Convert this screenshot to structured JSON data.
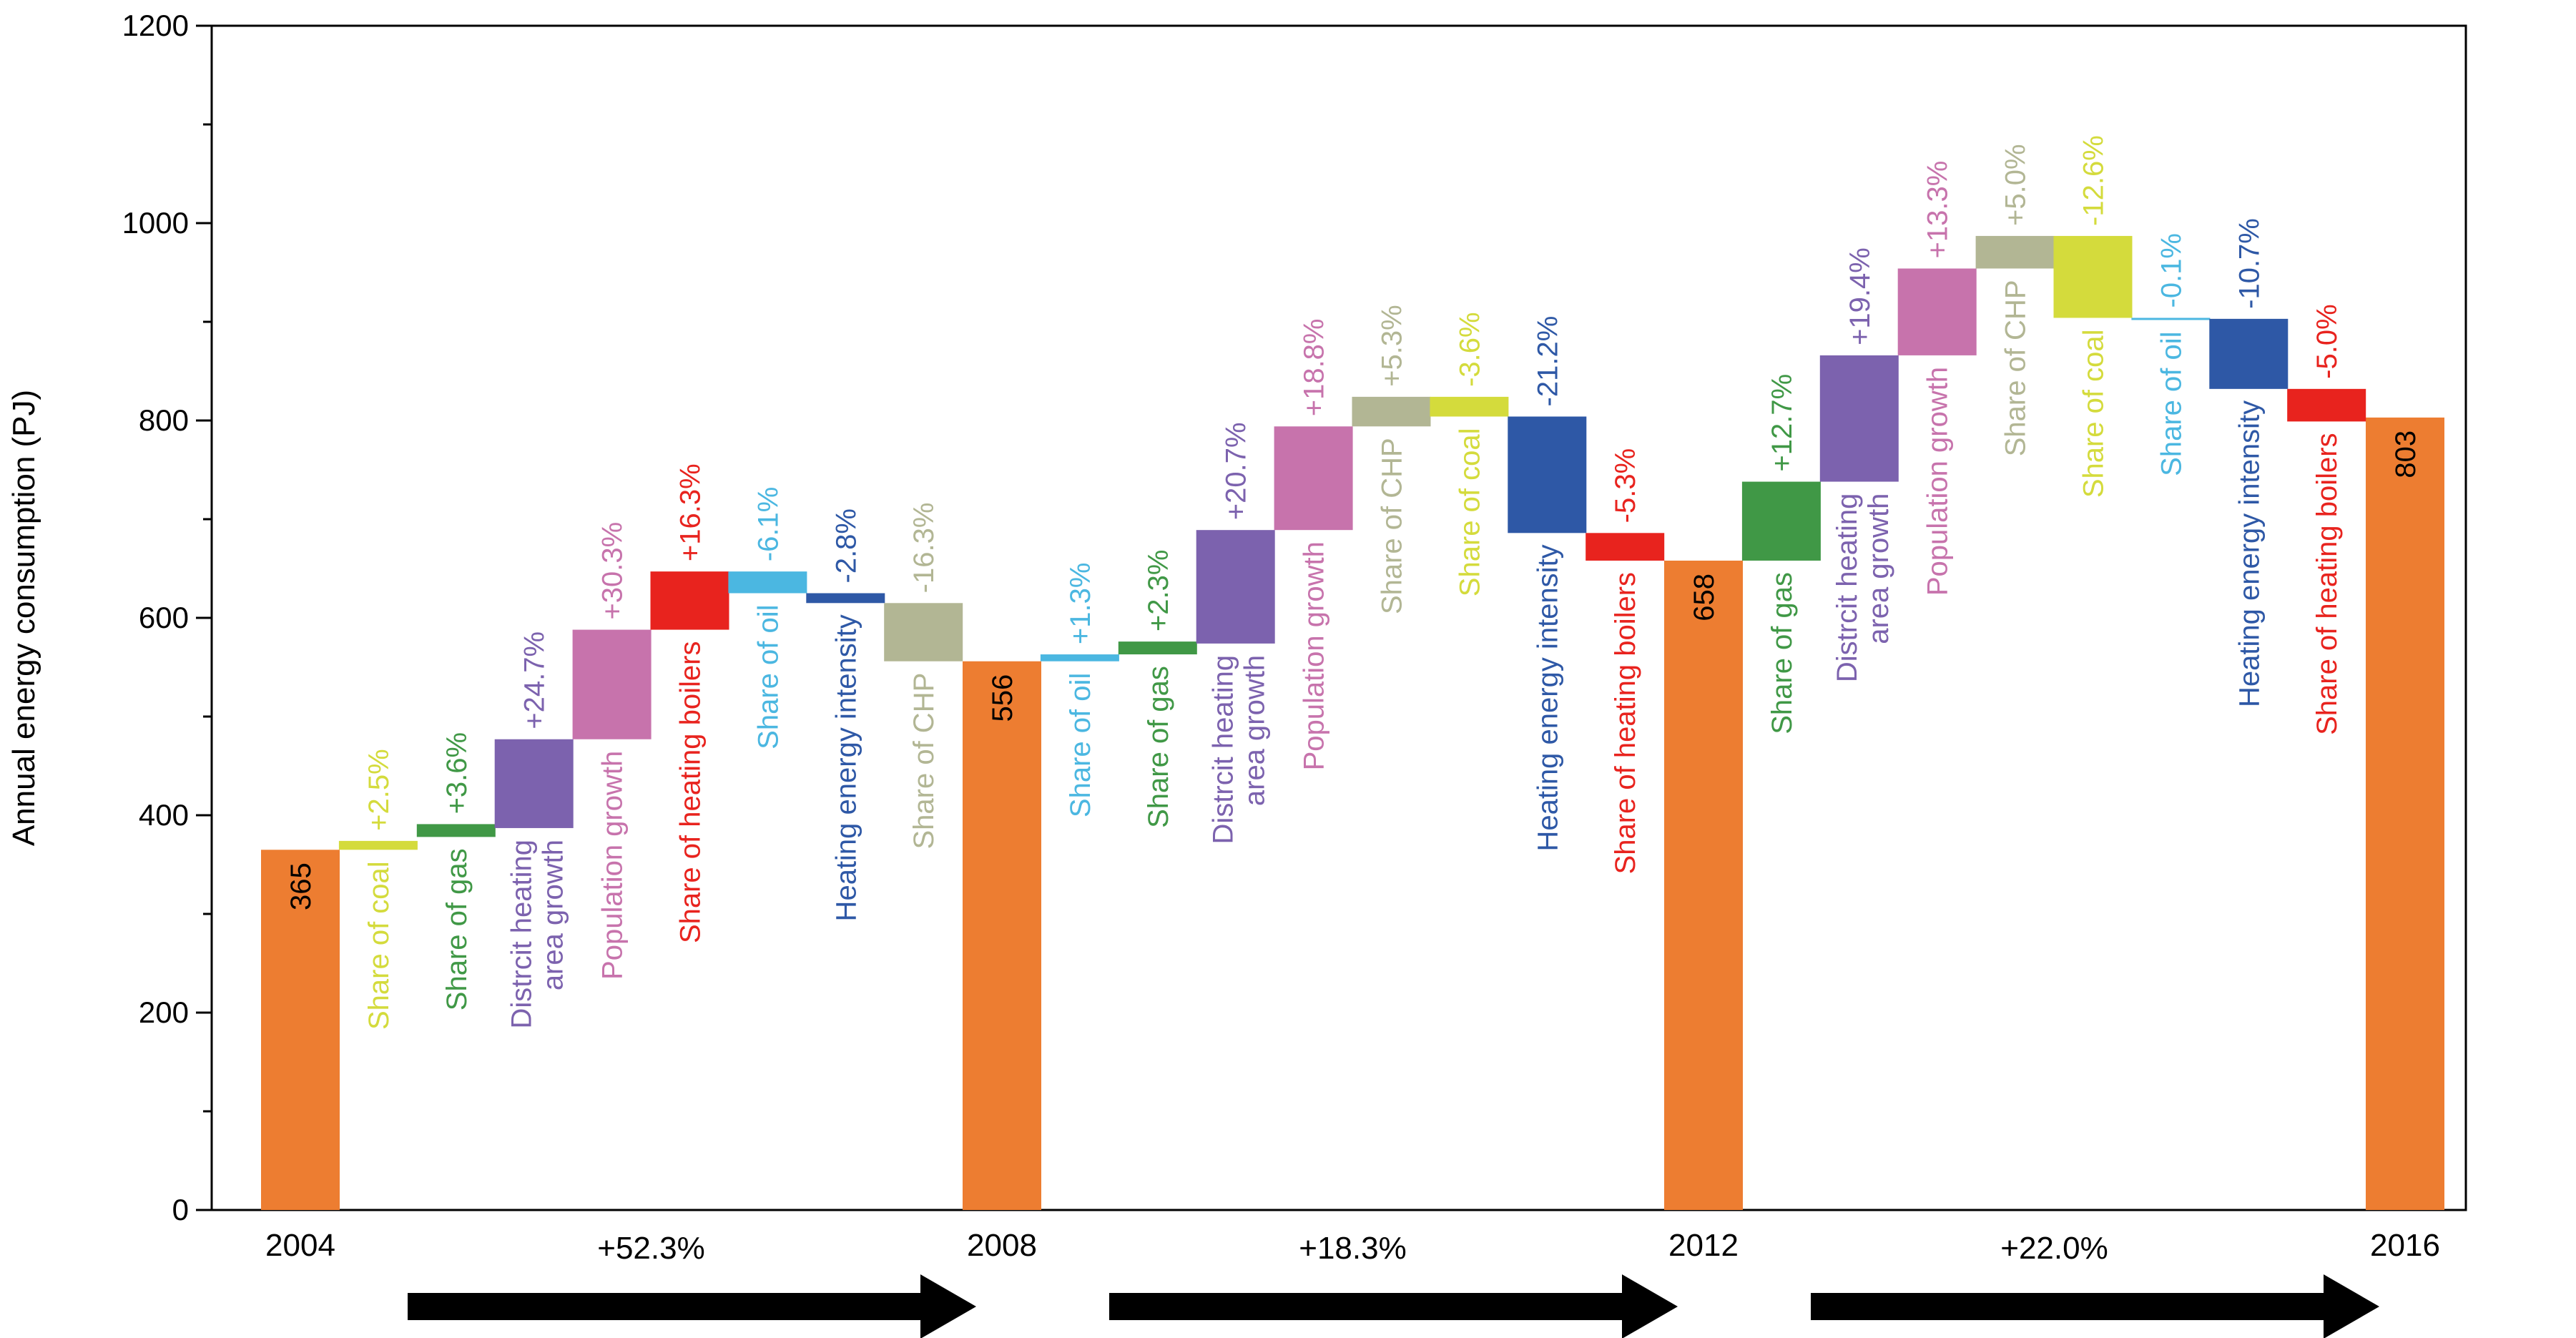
{
  "chart_data": {
    "type": "waterfall",
    "title": "",
    "xlabel": "",
    "ylabel": "Annual energy consumption (PJ)",
    "ylim": [
      0,
      1200
    ],
    "yticks": [
      0,
      200,
      400,
      600,
      800,
      1000,
      1200
    ],
    "year_totals": [
      {
        "year": "2004",
        "value": 365,
        "label": "365",
        "color": "#ED7D31"
      },
      {
        "year": "2008",
        "value": 556,
        "label": "556",
        "color": "#ED7D31"
      },
      {
        "year": "2012",
        "value": 658,
        "label": "658",
        "color": "#ED7D31"
      },
      {
        "year": "2016",
        "value": 803,
        "label": "803",
        "color": "#ED7D31"
      }
    ],
    "periods": [
      {
        "change": "+52.3%",
        "factors": [
          {
            "name": "Share of coal",
            "pct": "+2.5%",
            "start": 365,
            "end": 374,
            "color": "#D4DB3C"
          },
          {
            "name": "Share of gas",
            "pct": "+3.6%",
            "start": 378,
            "end": 391,
            "color": "#409846"
          },
          {
            "name": "Distrcit heating area growth",
            "pct": "+24.7%",
            "start": 387,
            "end": 477,
            "color": "#7C62AE"
          },
          {
            "name": "Population growth",
            "pct": "+30.3%",
            "start": 477,
            "end": 588,
            "color": "#C773AC"
          },
          {
            "name": "Share of heating boilers",
            "pct": "+16.3%",
            "start": 588,
            "end": 647,
            "color": "#E8231E"
          },
          {
            "name": "Share of oil",
            "pct": "-6.1%",
            "start": 647,
            "end": 625,
            "color": "#4BB7E1"
          },
          {
            "name": "Heating energy intensity",
            "pct": "-2.8%",
            "start": 625,
            "end": 615,
            "color": "#2E58A6"
          },
          {
            "name": "Share of CHP",
            "pct": "-16.3%",
            "start": 615,
            "end": 556,
            "color": "#B2B694"
          }
        ]
      },
      {
        "change": "+18.3%",
        "factors": [
          {
            "name": "Share of oil",
            "pct": "+1.3%",
            "start": 556,
            "end": 563,
            "color": "#4BB7E1"
          },
          {
            "name": "Share of gas",
            "pct": "+2.3%",
            "start": 563,
            "end": 576,
            "color": "#409846"
          },
          {
            "name": "Distrcit heating area growth",
            "pct": "+20.7%",
            "start": 574,
            "end": 689,
            "color": "#7C62AE"
          },
          {
            "name": "Population growth",
            "pct": "+18.8%",
            "start": 689,
            "end": 794,
            "color": "#C773AC"
          },
          {
            "name": "Share of CHP",
            "pct": "+5.3%",
            "start": 794,
            "end": 824,
            "color": "#B2B694"
          },
          {
            "name": "Share of coal",
            "pct": "-3.6%",
            "start": 824,
            "end": 804,
            "color": "#D4DB3C"
          },
          {
            "name": "Heating energy intensity",
            "pct": "-21.2%",
            "start": 804,
            "end": 686,
            "color": "#2E58A6"
          },
          {
            "name": "Share of heating boilers",
            "pct": "-5.3%",
            "start": 686,
            "end": 658,
            "color": "#E8231E"
          }
        ]
      },
      {
        "change": "+22.0%",
        "factors": [
          {
            "name": "Share of gas",
            "pct": "+12.7%",
            "start": 658,
            "end": 738,
            "color": "#409846"
          },
          {
            "name": "Distrcit heating area growth",
            "pct": "+19.4%",
            "start": 738,
            "end": 866,
            "color": "#7C62AE"
          },
          {
            "name": "Population growth",
            "pct": "+13.3%",
            "start": 866,
            "end": 954,
            "color": "#C773AC"
          },
          {
            "name": "Share of CHP",
            "pct": "+5.0%",
            "start": 954,
            "end": 987,
            "color": "#B2B694"
          },
          {
            "name": "Share of coal",
            "pct": "-12.6%",
            "start": 987,
            "end": 904,
            "color": "#D4DB3C"
          },
          {
            "name": "Share of oil",
            "pct": "-0.1%",
            "start": 904,
            "end": 903,
            "color": "#4BB7E1"
          },
          {
            "name": "Heating energy intensity",
            "pct": "-10.7%",
            "start": 903,
            "end": 832,
            "color": "#2E58A6"
          },
          {
            "name": "Share of heating boilers",
            "pct": "-5.0%",
            "start": 832,
            "end": 799,
            "color": "#E8231E"
          }
        ]
      }
    ]
  }
}
